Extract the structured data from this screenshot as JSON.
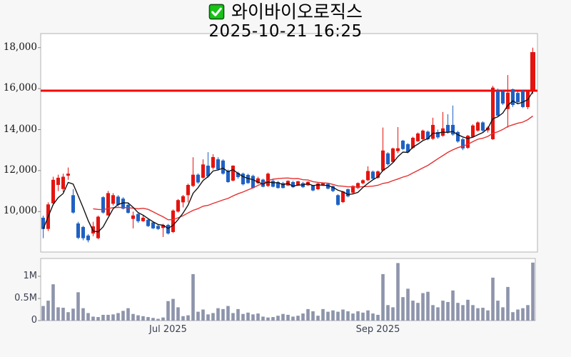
{
  "header": {
    "title": "와이바이오로직스",
    "timestamp": "2025-10-21 16:25",
    "checkbox_state": "checked"
  },
  "colors": {
    "up": "#e41410",
    "down": "#1f61c4",
    "ma_short": "#141414",
    "ma_long": "#e53030",
    "price_line": "#f30505",
    "volume": "#8d94ac",
    "panel_border": "#b3b3b3",
    "plot_bg": "#ffffff",
    "page_bg": "#f7f7f8",
    "axis_label": "#3d4150",
    "checkbox_green": "#17c417"
  },
  "chart_data": {
    "type": "candlestick_with_volume",
    "title": "와이바이오로직스",
    "as_of": "2025-10-21 16:25",
    "legend_position": "none",
    "grid": false,
    "price_axis": {
      "range": [
        8000,
        18700
      ],
      "ticks": [
        {
          "value": 18000,
          "label": "18,000"
        },
        {
          "value": 16000,
          "label": "16,000"
        },
        {
          "value": 14000,
          "label": "14,000"
        },
        {
          "value": 12000,
          "label": "12,000"
        },
        {
          "value": 10000,
          "label": "10,000"
        }
      ]
    },
    "x_axis_labels": [
      {
        "label": "Jul 2025",
        "candle_index": 25
      },
      {
        "label": "Sep 2025",
        "candle_index": 67
      }
    ],
    "volume_axis": {
      "range_millions": [
        0,
        1.4
      ],
      "ticks": [
        {
          "value": 1.0,
          "label": "1M"
        },
        {
          "value": 0.5,
          "label": "0.5M"
        },
        {
          "value": 0,
          "label": "0"
        }
      ]
    },
    "price_line": {
      "value": 15900,
      "note": "horizontal red marker line"
    },
    "ma_short_window": 5,
    "ma_long_window": 20,
    "candles_ohlc": [
      [
        9700,
        9800,
        8700,
        9150
      ],
      [
        9150,
        10450,
        9050,
        10350
      ],
      [
        10400,
        11700,
        10300,
        11550
      ],
      [
        11300,
        11800,
        11000,
        11650
      ],
      [
        11100,
        11850,
        10950,
        11700
      ],
      [
        11750,
        12150,
        11550,
        11850
      ],
      [
        10800,
        11100,
        9900,
        9950
      ],
      [
        9420,
        9500,
        8650,
        8720
      ],
      [
        9250,
        9300,
        8600,
        8700
      ],
      [
        8830,
        8900,
        8500,
        8600
      ],
      [
        8930,
        9500,
        8800,
        9280
      ],
      [
        8700,
        9800,
        8650,
        9750
      ],
      [
        10700,
        10750,
        9900,
        9950
      ],
      [
        9810,
        11010,
        9800,
        10900
      ],
      [
        10380,
        10900,
        10300,
        10800
      ],
      [
        10730,
        10800,
        10250,
        10330
      ],
      [
        10630,
        10700,
        10100,
        10140
      ],
      [
        10330,
        10400,
        9900,
        9940
      ],
      [
        9640,
        10000,
        9180,
        9810
      ],
      [
        9880,
        9950,
        9450,
        9530
      ],
      [
        9530,
        9800,
        9500,
        9700
      ],
      [
        9600,
        9650,
        9250,
        9290
      ],
      [
        9470,
        9500,
        9150,
        9180
      ],
      [
        9300,
        9350,
        9100,
        9150
      ],
      [
        9200,
        9400,
        8760,
        9350
      ],
      [
        9350,
        9400,
        8880,
        8930
      ],
      [
        9000,
        10100,
        8950,
        10050
      ],
      [
        10000,
        10610,
        9950,
        10560
      ],
      [
        10450,
        10810,
        10200,
        10750
      ],
      [
        10800,
        11360,
        10450,
        11300
      ],
      [
        11250,
        12650,
        11200,
        11800
      ],
      [
        11800,
        11860,
        11350,
        11420
      ],
      [
        11650,
        12550,
        11600,
        12300
      ],
      [
        12240,
        12900,
        11650,
        11720
      ],
      [
        12140,
        12800,
        12050,
        12660
      ],
      [
        12550,
        12650,
        12000,
        12060
      ],
      [
        12490,
        12550,
        11800,
        11850
      ],
      [
        11960,
        12050,
        11400,
        11440
      ],
      [
        11510,
        12260,
        11480,
        12240
      ],
      [
        11890,
        11950,
        11600,
        11680
      ],
      [
        11850,
        11900,
        11280,
        11330
      ],
      [
        11790,
        11850,
        11350,
        11390
      ],
      [
        11740,
        11800,
        11120,
        11150
      ],
      [
        11390,
        11700,
        11340,
        11620
      ],
      [
        11560,
        11600,
        11180,
        11210
      ],
      [
        11250,
        11900,
        11200,
        11850
      ],
      [
        11500,
        11600,
        11180,
        11210
      ],
      [
        11440,
        11500,
        11120,
        11150
      ],
      [
        11390,
        11450,
        11130,
        11150
      ],
      [
        11270,
        11520,
        11250,
        11500
      ],
      [
        11440,
        11500,
        11150,
        11190
      ],
      [
        11270,
        11500,
        11250,
        11480
      ],
      [
        11390,
        11450,
        11150,
        11190
      ],
      [
        11280,
        11480,
        11250,
        11450
      ],
      [
        11270,
        11300,
        10990,
        11030
      ],
      [
        11090,
        11400,
        11050,
        11370
      ],
      [
        11300,
        11420,
        11250,
        11390
      ],
      [
        11350,
        11380,
        11080,
        11120
      ],
      [
        11240,
        11280,
        10950,
        11000
      ],
      [
        10800,
        10850,
        10280,
        10330
      ],
      [
        10460,
        11010,
        10420,
        10980
      ],
      [
        11090,
        11120,
        10700,
        10740
      ],
      [
        10920,
        11280,
        10870,
        11250
      ],
      [
        11150,
        11420,
        11100,
        11390
      ],
      [
        11380,
        11570,
        11330,
        11530
      ],
      [
        11530,
        12210,
        11480,
        11980
      ],
      [
        11950,
        12000,
        11550,
        11600
      ],
      [
        11650,
        12000,
        11600,
        11960
      ],
      [
        12000,
        14100,
        11950,
        12980
      ],
      [
        12840,
        12900,
        12250,
        12310
      ],
      [
        12420,
        13120,
        12380,
        13080
      ],
      [
        12950,
        14120,
        12850,
        13090
      ],
      [
        13460,
        13500,
        13000,
        13050
      ],
      [
        13290,
        13340,
        12850,
        12900
      ],
      [
        13110,
        13650,
        13060,
        13600
      ],
      [
        13430,
        13860,
        13400,
        13810
      ],
      [
        13530,
        14000,
        13490,
        13950
      ],
      [
        13900,
        13950,
        13480,
        13530
      ],
      [
        13550,
        14580,
        13500,
        14230
      ],
      [
        13880,
        14000,
        13550,
        13620
      ],
      [
        13700,
        14860,
        13650,
        14060
      ],
      [
        14230,
        14750,
        13800,
        13880
      ],
      [
        14230,
        15170,
        13700,
        13760
      ],
      [
        13880,
        13940,
        13360,
        13420
      ],
      [
        13530,
        13600,
        13000,
        13080
      ],
      [
        13110,
        13740,
        13060,
        13700
      ],
      [
        13650,
        14260,
        13600,
        14200
      ],
      [
        13950,
        14400,
        13900,
        14350
      ],
      [
        14350,
        14400,
        13900,
        13950
      ],
      [
        13960,
        14160,
        13850,
        14100
      ],
      [
        13530,
        16140,
        13500,
        16050
      ],
      [
        15900,
        16000,
        14600,
        14680
      ],
      [
        15860,
        15950,
        15200,
        15270
      ],
      [
        15000,
        16660,
        14100,
        15800
      ],
      [
        15970,
        16000,
        15100,
        15200
      ],
      [
        15790,
        15850,
        15290,
        15340
      ],
      [
        15900,
        15950,
        15050,
        15100
      ],
      [
        15100,
        15950,
        15000,
        15870
      ],
      [
        15940,
        18000,
        15730,
        17780
      ]
    ],
    "volumes_millions": [
      0.33,
      0.45,
      0.82,
      0.3,
      0.29,
      0.19,
      0.27,
      0.64,
      0.28,
      0.17,
      0.09,
      0.08,
      0.13,
      0.13,
      0.14,
      0.17,
      0.22,
      0.28,
      0.15,
      0.12,
      0.1,
      0.08,
      0.06,
      0.04,
      0.07,
      0.44,
      0.49,
      0.3,
      0.1,
      0.12,
      1.05,
      0.2,
      0.25,
      0.14,
      0.17,
      0.28,
      0.26,
      0.33,
      0.17,
      0.26,
      0.15,
      0.18,
      0.14,
      0.16,
      0.09,
      0.07,
      0.08,
      0.11,
      0.15,
      0.13,
      0.09,
      0.11,
      0.16,
      0.26,
      0.21,
      0.11,
      0.26,
      0.2,
      0.23,
      0.2,
      0.25,
      0.21,
      0.16,
      0.21,
      0.18,
      0.23,
      0.16,
      0.13,
      1.05,
      0.35,
      0.3,
      1.3,
      0.53,
      0.72,
      0.45,
      0.4,
      0.62,
      0.65,
      0.35,
      0.3,
      0.45,
      0.42,
      0.68,
      0.4,
      0.35,
      0.47,
      0.35,
      0.28,
      0.29,
      0.23,
      0.97,
      0.45,
      0.3,
      0.76,
      0.19,
      0.25,
      0.28,
      0.35,
      1.31
    ]
  }
}
